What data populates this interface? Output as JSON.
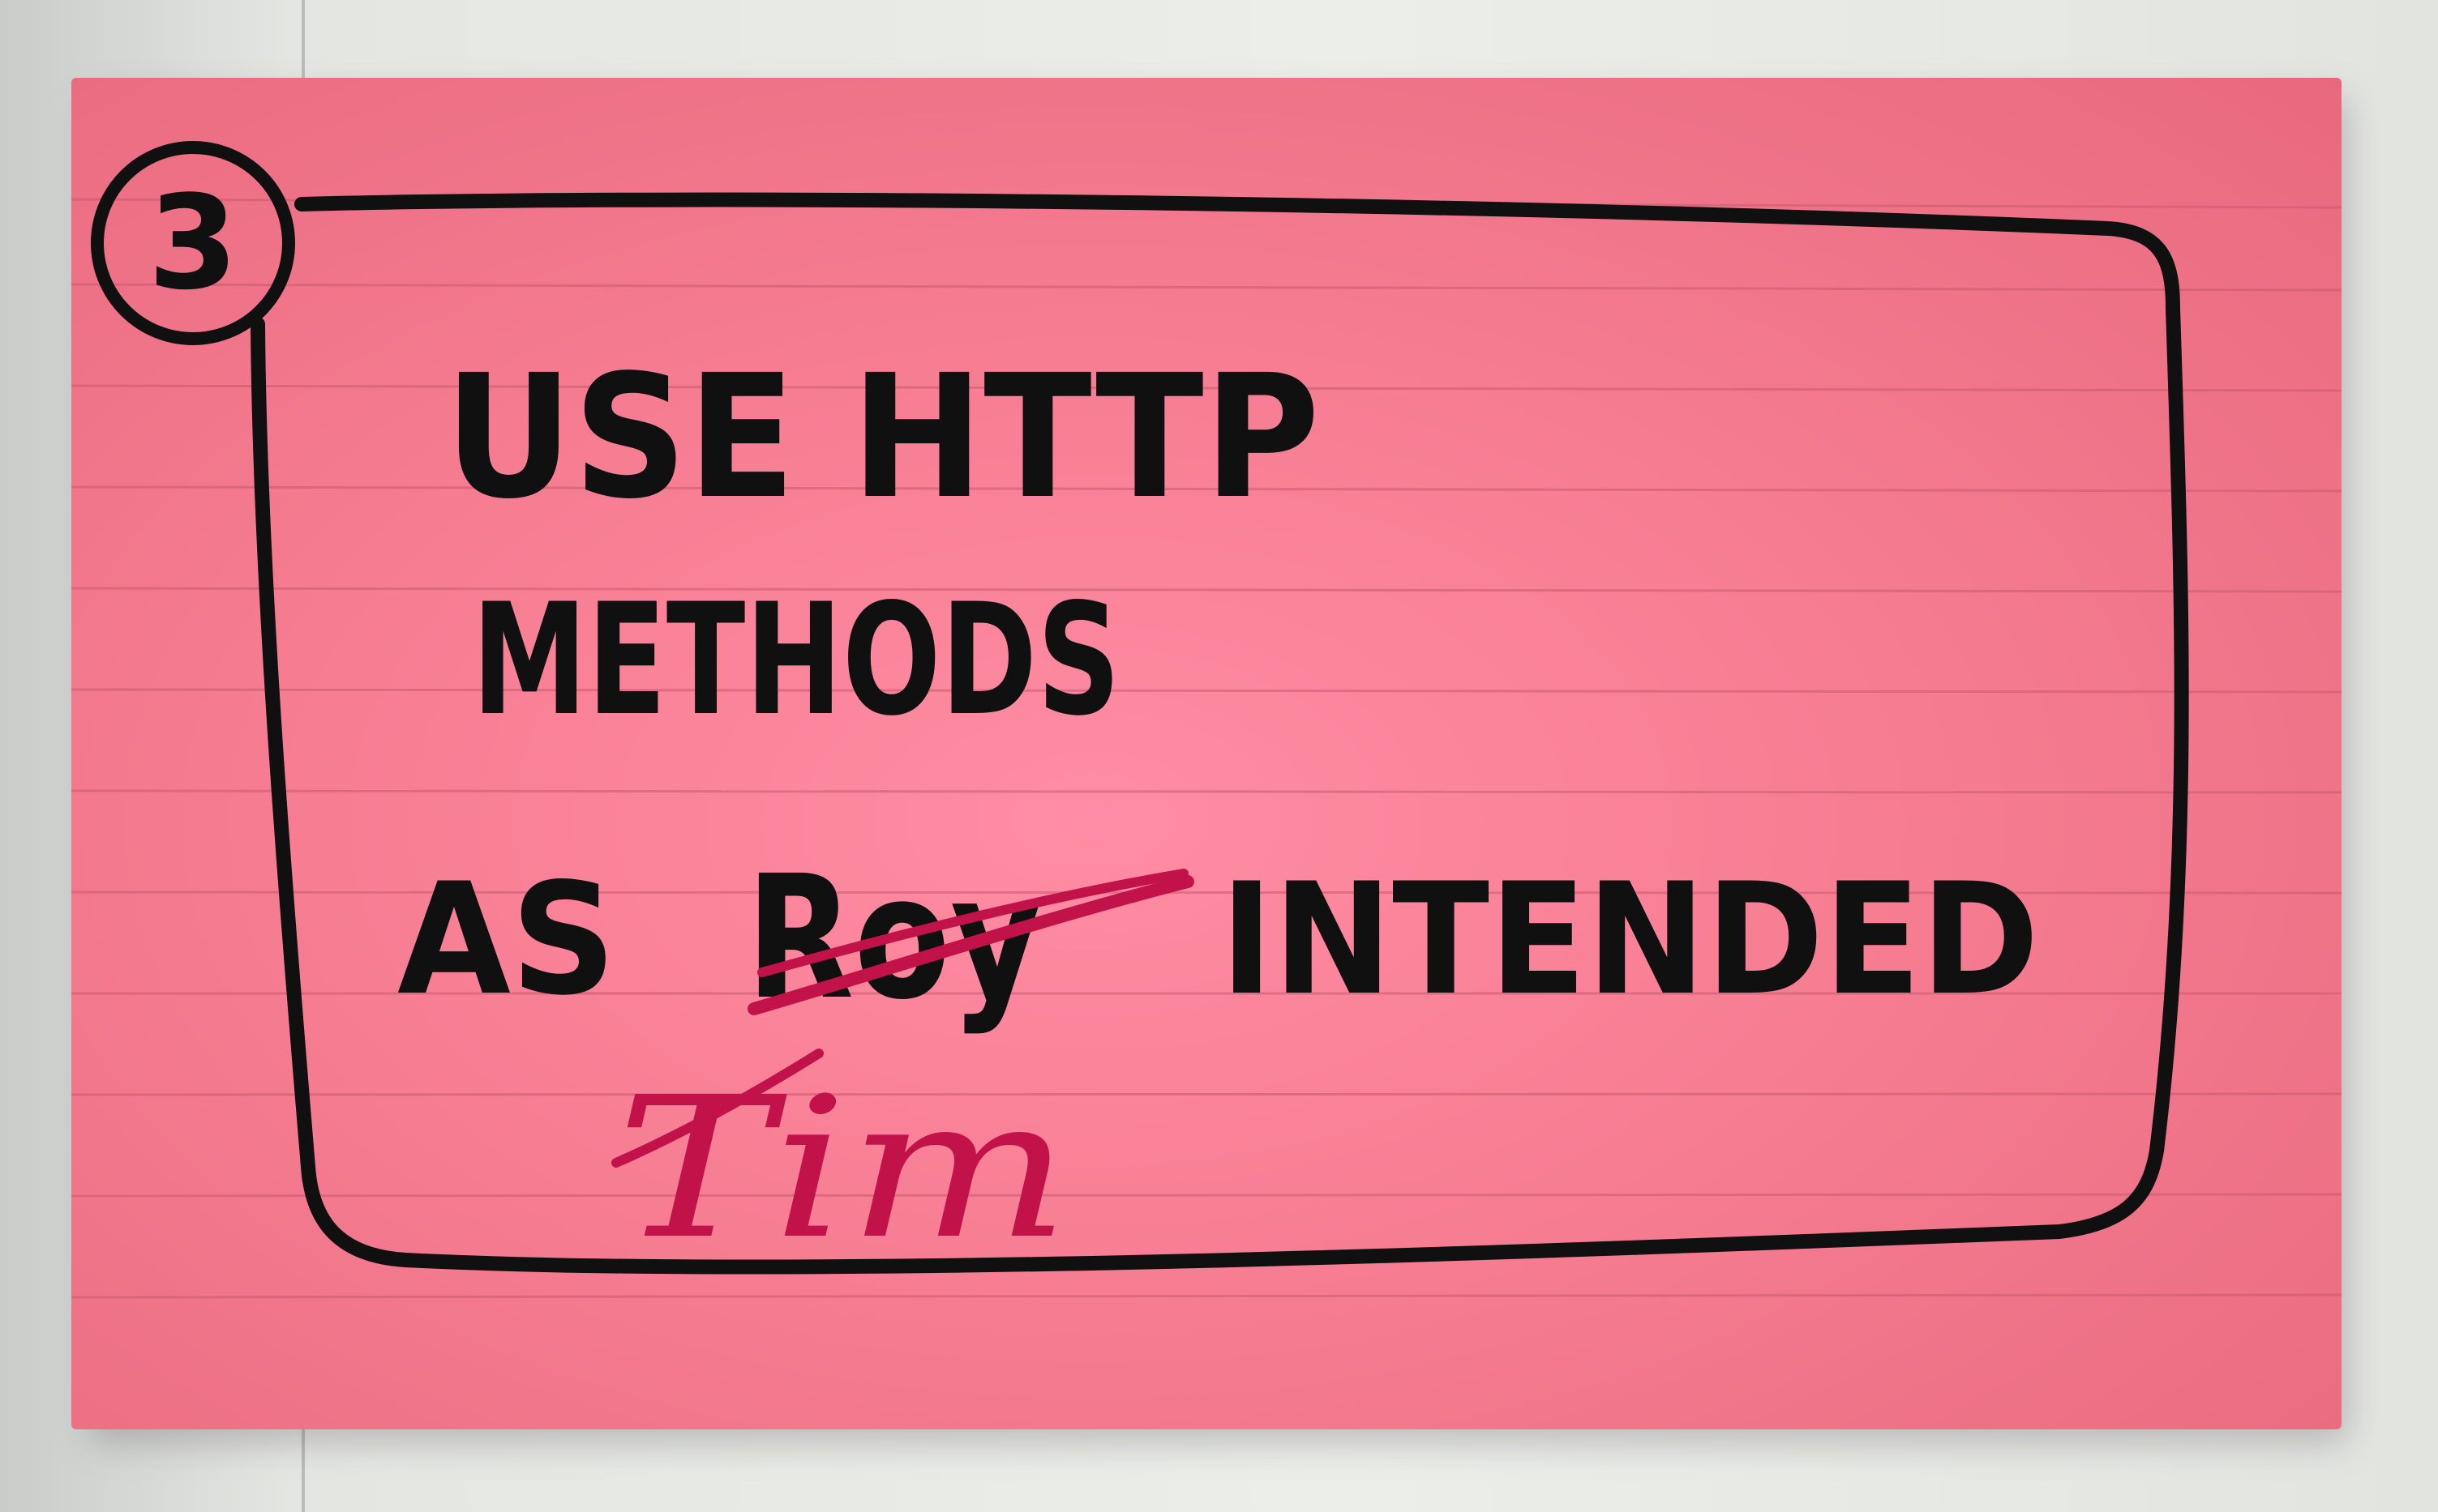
{
  "card": {
    "number": "3",
    "line1": "USE HTTP",
    "line2": "METHODS",
    "line3_prefix": "AS",
    "struck_name": "Roy",
    "line3_suffix": "INTENDED",
    "replacement_name": "Tim"
  },
  "colors": {
    "card": "#f67d92",
    "ink": "#101010",
    "correction_ink": "#c2124a",
    "wall": "#eceeea"
  }
}
